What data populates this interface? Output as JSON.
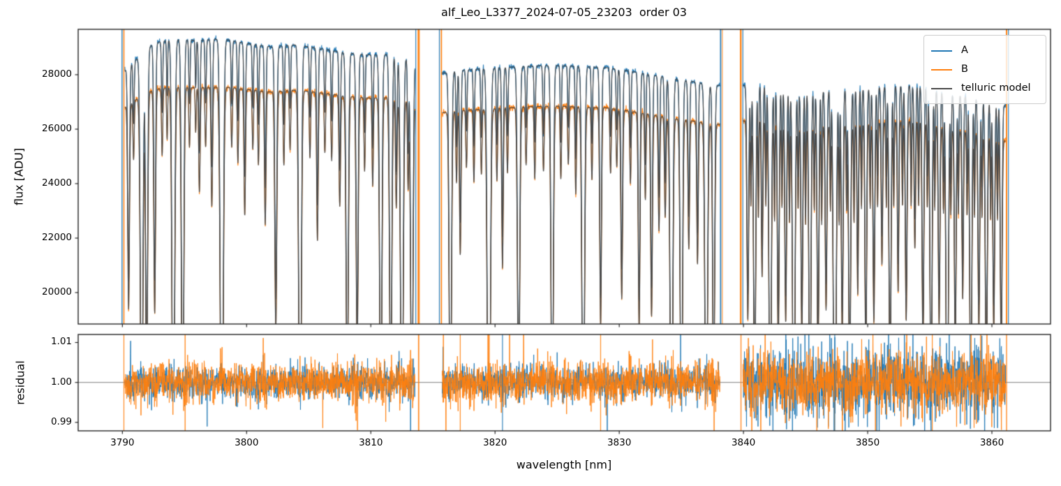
{
  "figure": {
    "title": "alf_Leo_L3377_2024-07-05_23203  order 03",
    "background": "#ffffff"
  },
  "flux_panel": {
    "ylabel": "flux [ADU]",
    "ytick_values": [
      20000,
      22000,
      24000,
      26000,
      28000
    ],
    "ytick_labels": [
      "20000",
      "22000",
      "24000",
      "26000",
      "28000"
    ],
    "ylim": [
      18846,
      29666
    ]
  },
  "residual_panel": {
    "ylabel": "residual",
    "ytick_values": [
      0.99,
      1.0,
      1.01
    ],
    "ytick_labels": [
      "0.99",
      "1.00",
      "1.01"
    ],
    "ylim": [
      0.98788,
      1.01201
    ],
    "hline_value": 1.0,
    "hline_color": "#7f7f7f"
  },
  "xaxis": {
    "label": "wavelength [nm]",
    "tick_values": [
      3790,
      3800,
      3810,
      3820,
      3830,
      3840,
      3850,
      3860
    ],
    "tick_labels": [
      "3790",
      "3800",
      "3810",
      "3820",
      "3830",
      "3840",
      "3850",
      "3860"
    ],
    "xlim": [
      3786.44,
      3864.72
    ]
  },
  "legend": {
    "position": "upper right",
    "items": [
      {
        "label": "A",
        "color": "#1f77b4"
      },
      {
        "label": "B",
        "color": "#ff7f0e"
      },
      {
        "label": "telluric model",
        "color": "#4a4a4a"
      }
    ]
  },
  "colors": {
    "spine": "#262626",
    "text": "#000000",
    "series_A": "#1f77b4",
    "series_B": "#ff7f0e",
    "telluric_model": "#4a4a4a"
  },
  "chart_data": {
    "type": "line",
    "title": "alf_Leo_L3377_2024-07-05_23203  order 03",
    "xlabel": "wavelength [nm]",
    "ylabel_top": "flux [ADU]",
    "ylabel_bottom": "residual",
    "xlim": [
      3786.44,
      3864.72
    ],
    "ylim_flux": [
      18846,
      29666
    ],
    "ylim_residual": [
      0.98788,
      1.01201
    ],
    "grid": false,
    "legend_position": "upper right",
    "segments": [
      [
        3790.2,
        3813.55
      ],
      [
        3815.75,
        3838.1
      ],
      [
        3839.95,
        3861.1
      ]
    ],
    "noise_seed": 7,
    "series": [
      {
        "name": "A",
        "role": "data",
        "color": "#1f77b4",
        "flux_noise_sigma": [
          0.0018,
          0.0018,
          0.0033
        ],
        "residual_noise_sigma": [
          0.002,
          0.002,
          0.0042
        ],
        "continuum": [
          [
            3790.2,
            28150
          ],
          [
            3791.2,
            28600
          ],
          [
            3792.5,
            29150
          ],
          [
            3794,
            29300
          ],
          [
            3796,
            29260
          ],
          [
            3798,
            29320
          ],
          [
            3800,
            29150
          ],
          [
            3802,
            29020
          ],
          [
            3804,
            29100
          ],
          [
            3806,
            28950
          ],
          [
            3808,
            28800
          ],
          [
            3810,
            28720
          ],
          [
            3812,
            28760
          ],
          [
            3813.55,
            28480
          ],
          [
            3815.75,
            28050
          ],
          [
            3817,
            28150
          ],
          [
            3819,
            28220
          ],
          [
            3821,
            28270
          ],
          [
            3823,
            28320
          ],
          [
            3825,
            28340
          ],
          [
            3827,
            28300
          ],
          [
            3829,
            28260
          ],
          [
            3831,
            28120
          ],
          [
            3833,
            27960
          ],
          [
            3835,
            27820
          ],
          [
            3836.5,
            27700
          ],
          [
            3838.1,
            27600
          ],
          [
            3839.95,
            27600
          ],
          [
            3841,
            27680
          ],
          [
            3842.5,
            27580
          ],
          [
            3844,
            27480
          ],
          [
            3846,
            27420
          ],
          [
            3848,
            27470
          ],
          [
            3850,
            27520
          ],
          [
            3852,
            27570
          ],
          [
            3854,
            27620
          ],
          [
            3856,
            27380
          ],
          [
            3857.5,
            27230
          ],
          [
            3859,
            27130
          ],
          [
            3860.5,
            27030
          ],
          [
            3861.1,
            26850
          ]
        ]
      },
      {
        "name": "B",
        "role": "data",
        "color": "#ff7f0e",
        "flux_noise_sigma": [
          0.0022,
          0.0022,
          0.003
        ],
        "residual_noise_sigma": [
          0.0024,
          0.0024,
          0.0036
        ],
        "continuum": [
          [
            3790.2,
            26800
          ],
          [
            3791.2,
            27120
          ],
          [
            3792.5,
            27440
          ],
          [
            3794,
            27560
          ],
          [
            3796,
            27520
          ],
          [
            3798,
            27560
          ],
          [
            3800,
            27460
          ],
          [
            3802,
            27360
          ],
          [
            3804,
            27440
          ],
          [
            3806,
            27330
          ],
          [
            3808,
            27210
          ],
          [
            3810,
            27140
          ],
          [
            3812,
            27180
          ],
          [
            3813.55,
            26950
          ],
          [
            3815.75,
            26600
          ],
          [
            3817,
            26680
          ],
          [
            3819,
            26730
          ],
          [
            3821,
            26780
          ],
          [
            3823,
            26830
          ],
          [
            3825,
            26850
          ],
          [
            3827,
            26810
          ],
          [
            3829,
            26780
          ],
          [
            3831,
            26650
          ],
          [
            3833,
            26500
          ],
          [
            3835,
            26360
          ],
          [
            3836.5,
            26260
          ],
          [
            3838.1,
            26180
          ],
          [
            3839.95,
            26300
          ],
          [
            3841,
            26380
          ],
          [
            3842.5,
            26280
          ],
          [
            3844,
            26180
          ],
          [
            3846,
            26120
          ],
          [
            3848,
            26170
          ],
          [
            3850,
            26220
          ],
          [
            3852,
            26270
          ],
          [
            3854,
            26320
          ],
          [
            3856,
            26080
          ],
          [
            3857.5,
            25930
          ],
          [
            3859,
            25830
          ],
          [
            3860.5,
            25730
          ],
          [
            3861.1,
            25550
          ]
        ]
      },
      {
        "name": "telluric model",
        "role": "model",
        "color": "#4a4a4a"
      }
    ],
    "telluric_lines": [
      [
        3790.5,
        0.28,
        0.07
      ],
      [
        3790.9,
        0.08,
        0.05
      ],
      [
        3791.55,
        0.5,
        0.1
      ],
      [
        3791.95,
        0.42,
        0.08
      ],
      [
        3792.6,
        0.3,
        0.07
      ],
      [
        3793.2,
        0.09,
        0.05
      ],
      [
        3793.6,
        0.07,
        0.04
      ],
      [
        3794.1,
        0.58,
        0.1
      ],
      [
        3794.85,
        0.52,
        0.09
      ],
      [
        3795.4,
        0.08,
        0.05
      ],
      [
        3795.9,
        0.06,
        0.04
      ],
      [
        3796.2,
        0.14,
        0.06
      ],
      [
        3796.7,
        0.08,
        0.05
      ],
      [
        3797.2,
        0.16,
        0.06
      ],
      [
        3798.0,
        0.62,
        0.11
      ],
      [
        3798.8,
        0.08,
        0.05
      ],
      [
        3799.3,
        0.1,
        0.05
      ],
      [
        3799.85,
        0.17,
        0.06
      ],
      [
        3800.5,
        0.08,
        0.05
      ],
      [
        3800.95,
        0.1,
        0.05
      ],
      [
        3801.5,
        0.18,
        0.06
      ],
      [
        3802.35,
        0.32,
        0.08
      ],
      [
        3803.0,
        0.1,
        0.05
      ],
      [
        3803.5,
        0.08,
        0.05
      ],
      [
        3804.3,
        0.56,
        0.1
      ],
      [
        3805.1,
        0.09,
        0.05
      ],
      [
        3805.7,
        0.2,
        0.06
      ],
      [
        3806.3,
        0.08,
        0.05
      ],
      [
        3806.85,
        0.09,
        0.05
      ],
      [
        3807.5,
        0.15,
        0.06
      ],
      [
        3808.1,
        0.42,
        0.09
      ],
      [
        3808.9,
        0.35,
        0.08
      ],
      [
        3809.5,
        0.1,
        0.05
      ],
      [
        3810.15,
        0.12,
        0.05
      ],
      [
        3810.8,
        0.48,
        0.09
      ],
      [
        3811.6,
        0.44,
        0.09
      ],
      [
        3812.05,
        0.15,
        0.06
      ],
      [
        3812.5,
        0.54,
        0.1
      ],
      [
        3813.0,
        0.12,
        0.05
      ],
      [
        3813.3,
        0.48,
        0.09
      ],
      [
        3816.4,
        0.48,
        0.09
      ],
      [
        3816.9,
        0.1,
        0.05
      ],
      [
        3817.2,
        0.2,
        0.06
      ],
      [
        3817.7,
        0.08,
        0.05
      ],
      [
        3818.3,
        0.1,
        0.05
      ],
      [
        3818.9,
        0.09,
        0.05
      ],
      [
        3819.5,
        0.64,
        0.11
      ],
      [
        3820.15,
        0.1,
        0.05
      ],
      [
        3820.6,
        0.22,
        0.06
      ],
      [
        3821.0,
        0.09,
        0.05
      ],
      [
        3821.9,
        0.42,
        0.09
      ],
      [
        3822.5,
        0.08,
        0.05
      ],
      [
        3823.2,
        0.1,
        0.05
      ],
      [
        3823.9,
        0.09,
        0.05
      ],
      [
        3824.6,
        0.48,
        0.09
      ],
      [
        3825.3,
        0.1,
        0.05
      ],
      [
        3825.9,
        0.08,
        0.05
      ],
      [
        3826.5,
        0.12,
        0.05
      ],
      [
        3827.1,
        0.52,
        0.1
      ],
      [
        3827.8,
        0.1,
        0.05
      ],
      [
        3828.5,
        0.3,
        0.07
      ],
      [
        3829.3,
        0.09,
        0.05
      ],
      [
        3829.8,
        0.08,
        0.05
      ],
      [
        3830.2,
        0.26,
        0.07
      ],
      [
        3830.9,
        0.1,
        0.05
      ],
      [
        3831.6,
        0.3,
        0.07
      ],
      [
        3832.1,
        0.12,
        0.05
      ],
      [
        3832.6,
        0.28,
        0.07
      ],
      [
        3833.2,
        0.16,
        0.06
      ],
      [
        3833.7,
        0.14,
        0.06
      ],
      [
        3834.2,
        0.56,
        0.1
      ],
      [
        3835.0,
        0.5,
        0.09
      ],
      [
        3835.6,
        0.18,
        0.06
      ],
      [
        3836.3,
        0.2,
        0.06
      ],
      [
        3837.0,
        0.52,
        0.1
      ],
      [
        3837.6,
        0.4,
        0.08
      ],
      [
        3840.35,
        0.28,
        0.07
      ],
      [
        3840.6,
        0.12,
        0.04
      ],
      [
        3840.9,
        0.42,
        0.08
      ],
      [
        3841.2,
        0.14,
        0.04
      ],
      [
        3841.5,
        0.22,
        0.06
      ],
      [
        3841.8,
        0.12,
        0.04
      ],
      [
        3842.15,
        0.48,
        0.09
      ],
      [
        3842.5,
        0.14,
        0.04
      ],
      [
        3842.8,
        0.32,
        0.07
      ],
      [
        3843.1,
        0.12,
        0.04
      ],
      [
        3843.4,
        0.28,
        0.07
      ],
      [
        3843.7,
        0.14,
        0.04
      ],
      [
        3844.05,
        0.52,
        0.09
      ],
      [
        3844.4,
        0.12,
        0.04
      ],
      [
        3844.7,
        0.3,
        0.07
      ],
      [
        3845.0,
        0.14,
        0.04
      ],
      [
        3845.35,
        0.44,
        0.08
      ],
      [
        3845.7,
        0.12,
        0.04
      ],
      [
        3846.0,
        0.34,
        0.07
      ],
      [
        3846.3,
        0.14,
        0.04
      ],
      [
        3846.65,
        0.26,
        0.07
      ],
      [
        3847.0,
        0.12,
        0.04
      ],
      [
        3847.35,
        0.58,
        0.1
      ],
      [
        3847.7,
        0.14,
        0.04
      ],
      [
        3847.95,
        0.3,
        0.07
      ],
      [
        3848.3,
        0.12,
        0.04
      ],
      [
        3848.55,
        0.38,
        0.08
      ],
      [
        3848.9,
        0.14,
        0.04
      ],
      [
        3849.2,
        0.24,
        0.06
      ],
      [
        3849.5,
        0.12,
        0.04
      ],
      [
        3849.85,
        0.34,
        0.07
      ],
      [
        3850.2,
        0.12,
        0.04
      ],
      [
        3850.5,
        0.28,
        0.07
      ],
      [
        3850.8,
        0.12,
        0.04
      ],
      [
        3851.15,
        0.2,
        0.06
      ],
      [
        3851.5,
        0.12,
        0.04
      ],
      [
        3851.8,
        0.38,
        0.08
      ],
      [
        3852.1,
        0.12,
        0.04
      ],
      [
        3852.45,
        0.24,
        0.06
      ],
      [
        3852.8,
        0.12,
        0.04
      ],
      [
        3853.1,
        0.28,
        0.07
      ],
      [
        3853.5,
        0.12,
        0.04
      ],
      [
        3853.8,
        0.18,
        0.06
      ],
      [
        3854.1,
        0.12,
        0.04
      ],
      [
        3854.45,
        0.32,
        0.07
      ],
      [
        3854.8,
        0.12,
        0.04
      ],
      [
        3855.1,
        0.42,
        0.08
      ],
      [
        3855.4,
        0.12,
        0.04
      ],
      [
        3855.75,
        0.28,
        0.07
      ],
      [
        3856.1,
        0.12,
        0.04
      ],
      [
        3856.4,
        0.48,
        0.09
      ],
      [
        3856.7,
        0.12,
        0.04
      ],
      [
        3857.05,
        0.32,
        0.07
      ],
      [
        3857.3,
        0.12,
        0.04
      ],
      [
        3857.65,
        0.24,
        0.06
      ],
      [
        3858.0,
        0.12,
        0.04
      ],
      [
        3858.3,
        0.42,
        0.08
      ],
      [
        3858.6,
        0.12,
        0.04
      ],
      [
        3858.95,
        0.28,
        0.07
      ],
      [
        3859.2,
        0.12,
        0.04
      ],
      [
        3859.55,
        0.36,
        0.08
      ],
      [
        3859.9,
        0.12,
        0.04
      ],
      [
        3860.15,
        0.28,
        0.07
      ],
      [
        3860.45,
        0.12,
        0.04
      ],
      [
        3860.75,
        0.32,
        0.07
      ]
    ],
    "vertical_lines_flux": [
      {
        "x": 3789.97,
        "color": "#1f77b4",
        "w": 1.4
      },
      {
        "x": 3790.12,
        "color": "#ff7f0e",
        "w": 1.6
      },
      {
        "x": 3813.62,
        "color": "#1f77b4",
        "w": 1.2
      },
      {
        "x": 3813.85,
        "color": "#ff7f0e",
        "w": 3.0
      },
      {
        "x": 3815.52,
        "color": "#1f77b4",
        "w": 1.2
      },
      {
        "x": 3815.68,
        "color": "#ff7f0e",
        "w": 1.8
      },
      {
        "x": 3838.16,
        "color": "#1f77b4",
        "w": 1.8
      },
      {
        "x": 3838.3,
        "color": "#ff7f0e",
        "w": 1.0
      },
      {
        "x": 3839.78,
        "color": "#ff7f0e",
        "w": 2.4
      },
      {
        "x": 3839.95,
        "color": "#1f77b4",
        "w": 1.2
      },
      {
        "x": 3861.18,
        "color": "#ff7f0e",
        "w": 2.0
      },
      {
        "x": 3861.33,
        "color": "#1f77b4",
        "w": 1.2
      }
    ],
    "vertical_lines_residual": [
      {
        "x": 3790.12,
        "color": "#ff7f0e",
        "w": 1.2
      },
      {
        "x": 3795.05,
        "color": "#ff7f0e",
        "w": 1.4
      },
      {
        "x": 3813.85,
        "color": "#ff7f0e",
        "w": 1.8
      },
      {
        "x": 3817.2,
        "color": "#ff7f0e",
        "w": 1.2
      },
      {
        "x": 3820.6,
        "color": "#1f77b4",
        "w": 1.2
      },
      {
        "x": 3828.5,
        "color": "#ff7f0e",
        "w": 1.2
      },
      {
        "x": 3839.8,
        "color": "#ff7f0e",
        "w": 1.4
      },
      {
        "x": 3847.35,
        "color": "#1f77b4",
        "w": 1.2
      },
      {
        "x": 3855.2,
        "color": "#ff7f0e",
        "w": 1.2
      },
      {
        "x": 3861.18,
        "color": "#ff7f0e",
        "w": 1.4
      }
    ]
  }
}
